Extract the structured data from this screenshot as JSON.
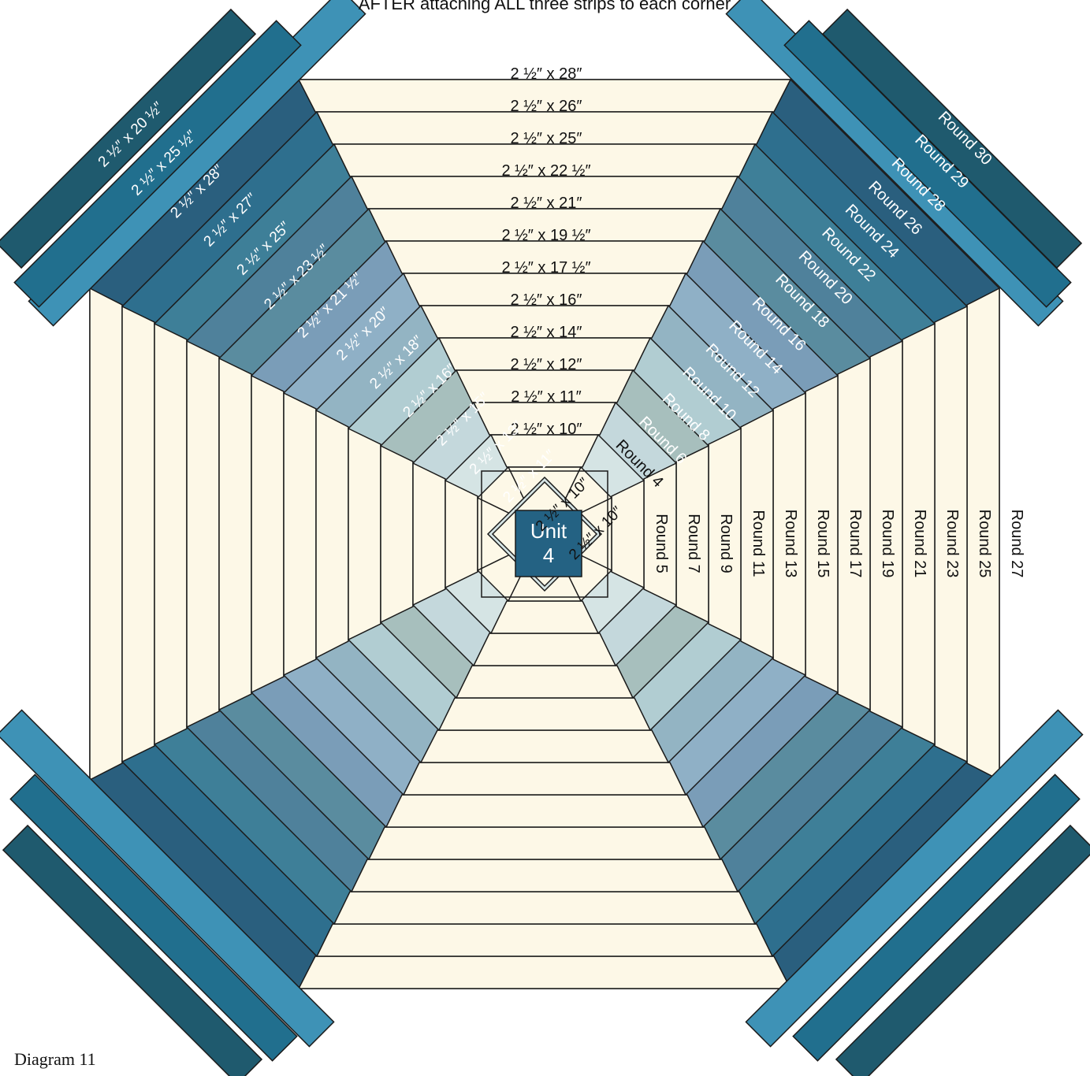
{
  "header_text": "AFTER attaching ALL three strips to each corner",
  "caption": "Diagram 11",
  "unit_label": [
    "Unit",
    "4"
  ],
  "colors": {
    "cream": "#fdf8e7",
    "outline": "#1a1a1a",
    "unit_fill": "#246283",
    "text_dark": "#111111",
    "text_light": "#ffffff",
    "ring_fills": [
      "#fdf8e7",
      "#d5e4e4",
      "#c4d8dc",
      "#a7bfbd",
      "#b1cdd2",
      "#93b4c3",
      "#8fb0c6",
      "#7a9db8",
      "#5a8c9f",
      "#4f819b",
      "#3e7f98",
      "#2e6f8e",
      "#2a5f7e"
    ],
    "corner_fills": [
      "#3e92b6",
      "#216f8e",
      "#1f5a6e"
    ]
  },
  "horizontal_strip_labels": [
    "2 ½″ x 28″",
    "2 ½″ x 26″",
    "2 ½″ x 25″",
    "2 ½″ x 22 ½″",
    "2 ½″ x 21″",
    "2 ½″ x 19 ½″",
    "2 ½″ x 17 ½″",
    "2 ½″ x 16″",
    "2 ½″ x 14″",
    "2 ½″ x 12″",
    "2 ½″ x 11″",
    "2 ½″ x 10″"
  ],
  "diagonal_strip_labels": [
    "2 ½″ x 20 ½″",
    "2 ½″ x 25 ½″",
    "2 ½″ x 28″",
    "2 ½″ x 27″",
    "2 ½″ x 25″",
    "2 ½″ x 23 ½″",
    "2 ½″ x 21 ½″",
    "2 ½″ x 20″",
    "2 ½″ x 18″",
    "2 ½″ x 16″",
    "2 ½″ x 15″",
    "2 ½″ x 13″",
    "2 ½″ x 11″",
    "2 ½″ x 10″",
    "2 ½″ x 10″"
  ],
  "vertical_round_labels": [
    "Round 5",
    "Round 7",
    "Round 9",
    "Round 11",
    "Round 13",
    "Round 15",
    "Round 17",
    "Round 19",
    "Round 21",
    "Round 23",
    "Round 25",
    "Round 27"
  ],
  "diagonal_round_labels": [
    "Round 30",
    "Round 29",
    "Round 28",
    "Round 26",
    "Round 24",
    "Round 22",
    "Round 20",
    "Round 18",
    "Round 16",
    "Round 14",
    "Round 12",
    "Round 10",
    "Round 8",
    "Round 6",
    "Round 4"
  ]
}
